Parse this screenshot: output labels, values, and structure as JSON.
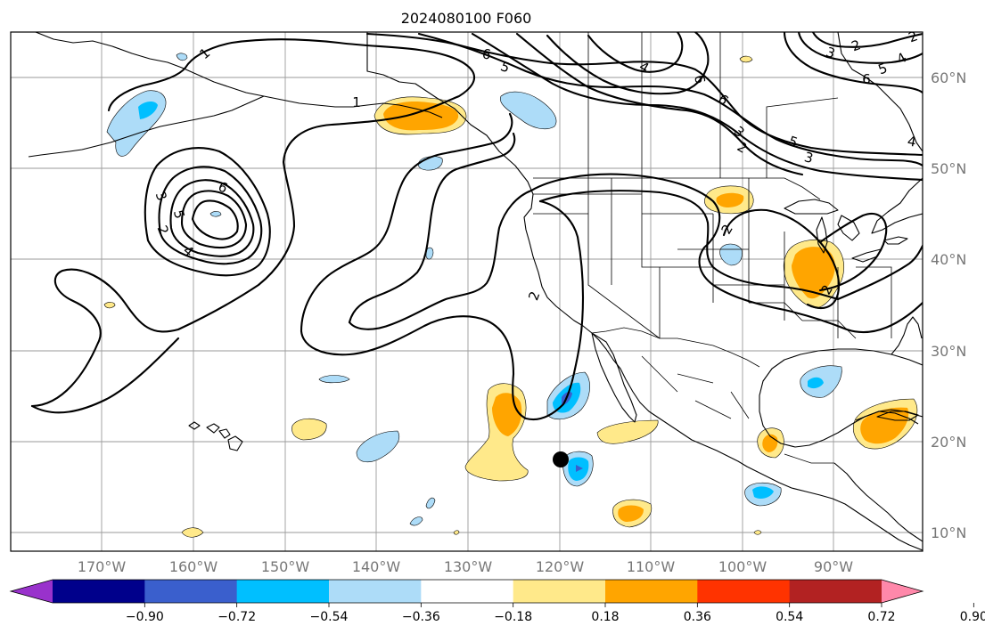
{
  "title": "2024080100 F060",
  "longitude_labels": [
    "170°W",
    "160°W",
    "150°W",
    "140°W",
    "130°W",
    "120°W",
    "110°W",
    "100°W",
    "90°W"
  ],
  "latitude_labels": [
    "60°N",
    "50°N",
    "40°N",
    "30°N",
    "20°N",
    "10°N"
  ],
  "contour_labels": [
    "1",
    "1",
    "6",
    "6",
    "5",
    "4",
    "3",
    "2",
    "6",
    "5",
    "4",
    "3",
    "2",
    "2",
    "2",
    "6",
    "3",
    "5",
    "2",
    "4",
    "3",
    "2",
    "5",
    "4",
    "6",
    "2"
  ],
  "colorbar": {
    "tick_labels": [
      "−0.90",
      "−0.72",
      "−0.54",
      "−0.36",
      "−0.18",
      "0.18",
      "0.36",
      "0.54",
      "0.72",
      "0.90"
    ],
    "colors": [
      "#9932CC",
      "#00008B",
      "#3A5FCD",
      "#00BFFF",
      "#ADDCF8",
      "#FFFFFF",
      "#FFE98A",
      "#FFA500",
      "#FF3300",
      "#B22222",
      "#FF88AA"
    ]
  },
  "shading_colors": {
    "light_blue": "#ADDCF8",
    "deep_sky_blue": "#00BFFF",
    "royal_blue": "#3A5FCD",
    "light_yellow": "#FFE98A",
    "orange": "#FFA500"
  },
  "marker": {
    "symbol": "filled-circle",
    "color": "#000000"
  }
}
